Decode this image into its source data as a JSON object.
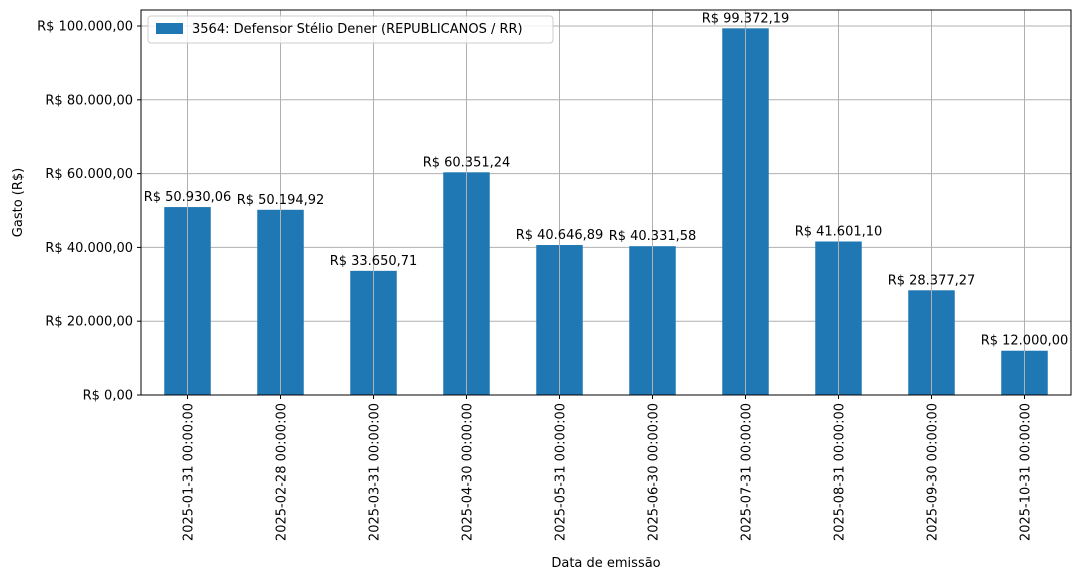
{
  "chart_data": {
    "type": "bar",
    "xlabel": "Data de emissão",
    "ylabel": "Gasto (R$)",
    "ylim": [
      0,
      104340
    ],
    "grid": true,
    "legend_position": "top-left",
    "categories": [
      "2025-01-31 00:00:00",
      "2025-02-28 00:00:00",
      "2025-03-31 00:00:00",
      "2025-04-30 00:00:00",
      "2025-05-31 00:00:00",
      "2025-06-30 00:00:00",
      "2025-07-31 00:00:00",
      "2025-08-31 00:00:00",
      "2025-09-30 00:00:00",
      "2025-10-31 00:00:00"
    ],
    "series": [
      {
        "name": "3564: Defensor Stélio Dener (REPUBLICANOS / RR)",
        "color": "#1f77b4",
        "values": [
          50930.06,
          50194.92,
          33650.71,
          60351.24,
          40646.89,
          40331.58,
          99372.19,
          41601.1,
          28377.27,
          12000.0
        ],
        "labels": [
          "R$ 50.930,06",
          "R$ 50.194,92",
          "R$ 33.650,71",
          "R$ 60.351,24",
          "R$ 40.646,89",
          "R$ 40.331,58",
          "R$ 99.372,19",
          "R$ 41.601,10",
          "R$ 28.377,27",
          "R$ 12.000,00"
        ]
      }
    ],
    "yticks": [
      0,
      20000,
      40000,
      60000,
      80000,
      100000
    ],
    "ytick_labels": [
      "R$ 0,00",
      "R$ 20.000,00",
      "R$ 40.000,00",
      "R$ 60.000,00",
      "R$ 80.000,00",
      "R$ 100.000,00"
    ]
  }
}
